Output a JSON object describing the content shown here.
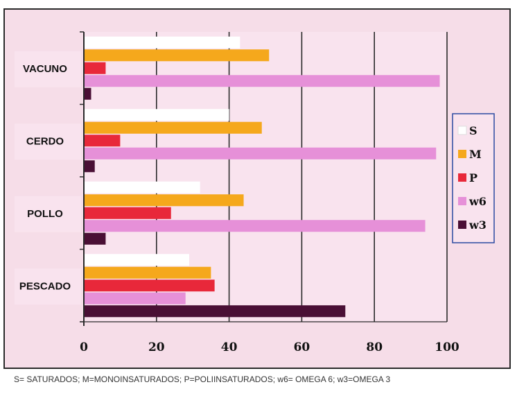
{
  "chart_data": {
    "type": "bar",
    "orientation": "horizontal",
    "categories": [
      "VACUNO",
      "CERDO",
      "POLLO",
      "PESCADO"
    ],
    "series": [
      {
        "name": "S",
        "color": "#ffffff",
        "values": [
          43,
          40,
          32,
          29
        ]
      },
      {
        "name": "M",
        "color": "#f5a81c",
        "values": [
          51,
          49,
          44,
          35
        ]
      },
      {
        "name": "P",
        "color": "#e8283a",
        "values": [
          6,
          10,
          24,
          36
        ]
      },
      {
        "name": "w6",
        "color": "#e690d8",
        "values": [
          98,
          97,
          94,
          28
        ]
      },
      {
        "name": "w3",
        "color": "#4a0f35",
        "values": [
          2,
          3,
          6,
          72
        ]
      }
    ],
    "x_ticks": [
      "0",
      "20",
      "40",
      "60",
      "80",
      "100"
    ],
    "xlim": [
      0,
      100
    ],
    "grid": "vertical",
    "legend_position": "right",
    "background_color": "#f6dde8"
  },
  "footnote": "S= SATURADOS; M=MONOINSATURADOS; P=POLIINSATURADOS; w6= OMEGA 6; w3=OMEGA 3"
}
